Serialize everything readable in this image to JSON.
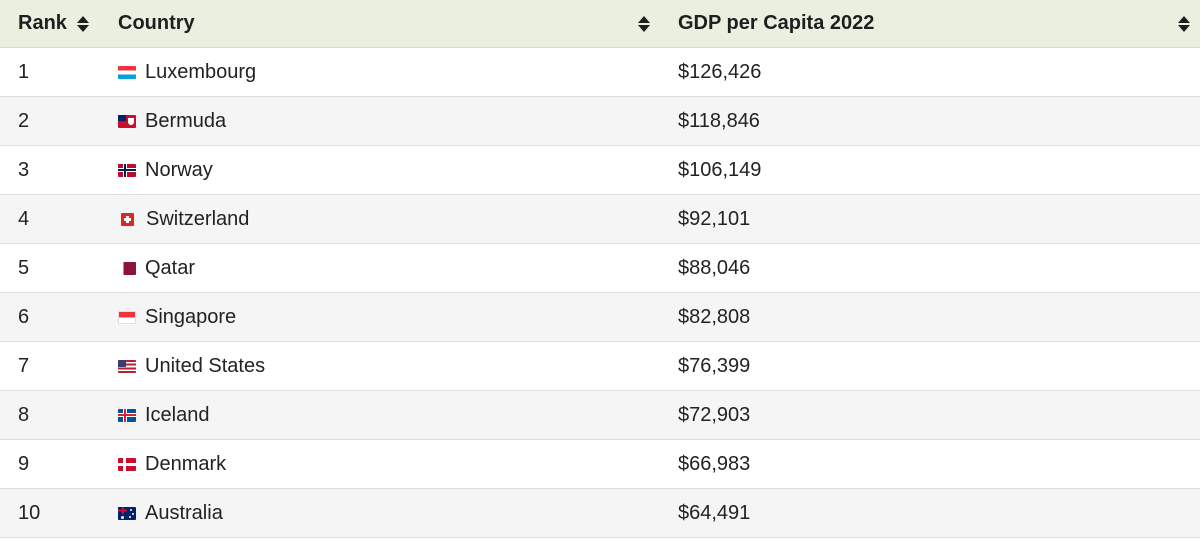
{
  "header": {
    "rank_label": "Rank",
    "country_label": "Country",
    "gdp_label": "GDP per Capita 2022"
  },
  "rows": [
    {
      "rank": "1",
      "country": "Luxembourg",
      "gdp": "$126,426",
      "flag_icon": "luxembourg-flag-icon"
    },
    {
      "rank": "2",
      "country": "Bermuda",
      "gdp": "$118,846",
      "flag_icon": "bermuda-flag-icon"
    },
    {
      "rank": "3",
      "country": "Norway",
      "gdp": "$106,149",
      "flag_icon": "norway-flag-icon"
    },
    {
      "rank": "4",
      "country": "Switzerland",
      "gdp": "$92,101",
      "flag_icon": "switzerland-flag-icon"
    },
    {
      "rank": "5",
      "country": "Qatar",
      "gdp": "$88,046",
      "flag_icon": "qatar-flag-icon"
    },
    {
      "rank": "6",
      "country": "Singapore",
      "gdp": "$82,808",
      "flag_icon": "singapore-flag-icon"
    },
    {
      "rank": "7",
      "country": "United States",
      "gdp": "$76,399",
      "flag_icon": "united-states-flag-icon"
    },
    {
      "rank": "8",
      "country": "Iceland",
      "gdp": "$72,903",
      "flag_icon": "iceland-flag-icon"
    },
    {
      "rank": "9",
      "country": "Denmark",
      "gdp": "$66,983",
      "flag_icon": "denmark-flag-icon"
    },
    {
      "rank": "10",
      "country": "Australia",
      "gdp": "$64,491",
      "flag_icon": "australia-flag-icon"
    }
  ],
  "colors": {
    "header_bg": "#e9f0df",
    "row_alt_bg": "#f5f5f5",
    "border": "#dcdcdc"
  }
}
